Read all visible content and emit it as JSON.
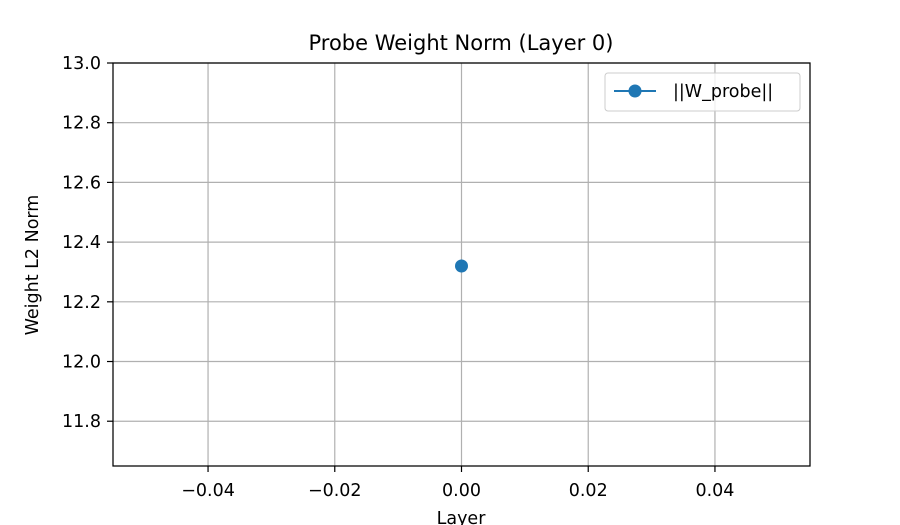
{
  "chart_data": {
    "type": "line",
    "title": "Probe Weight Norm (Layer 0)",
    "xlabel": "Layer",
    "ylabel": "Weight L2 Norm",
    "xlim": [
      -0.055,
      0.055
    ],
    "ylim": [
      11.65,
      13.0
    ],
    "xticks": [
      -0.04,
      -0.02,
      0.0,
      0.02,
      0.04
    ],
    "xtick_labels": [
      "−0.04",
      "−0.02",
      "0.00",
      "0.02",
      "0.04"
    ],
    "yticks": [
      11.8,
      12.0,
      12.2,
      12.4,
      12.6,
      12.8,
      13.0
    ],
    "ytick_labels": [
      "11.8",
      "12.0",
      "12.2",
      "12.4",
      "12.6",
      "12.8",
      "13.0"
    ],
    "grid": true,
    "legend_position": "top-right",
    "series": [
      {
        "name": "||W_probe||",
        "color": "#1f77b4",
        "marker": "circle",
        "x": [
          0
        ],
        "y": [
          12.32
        ]
      }
    ]
  }
}
